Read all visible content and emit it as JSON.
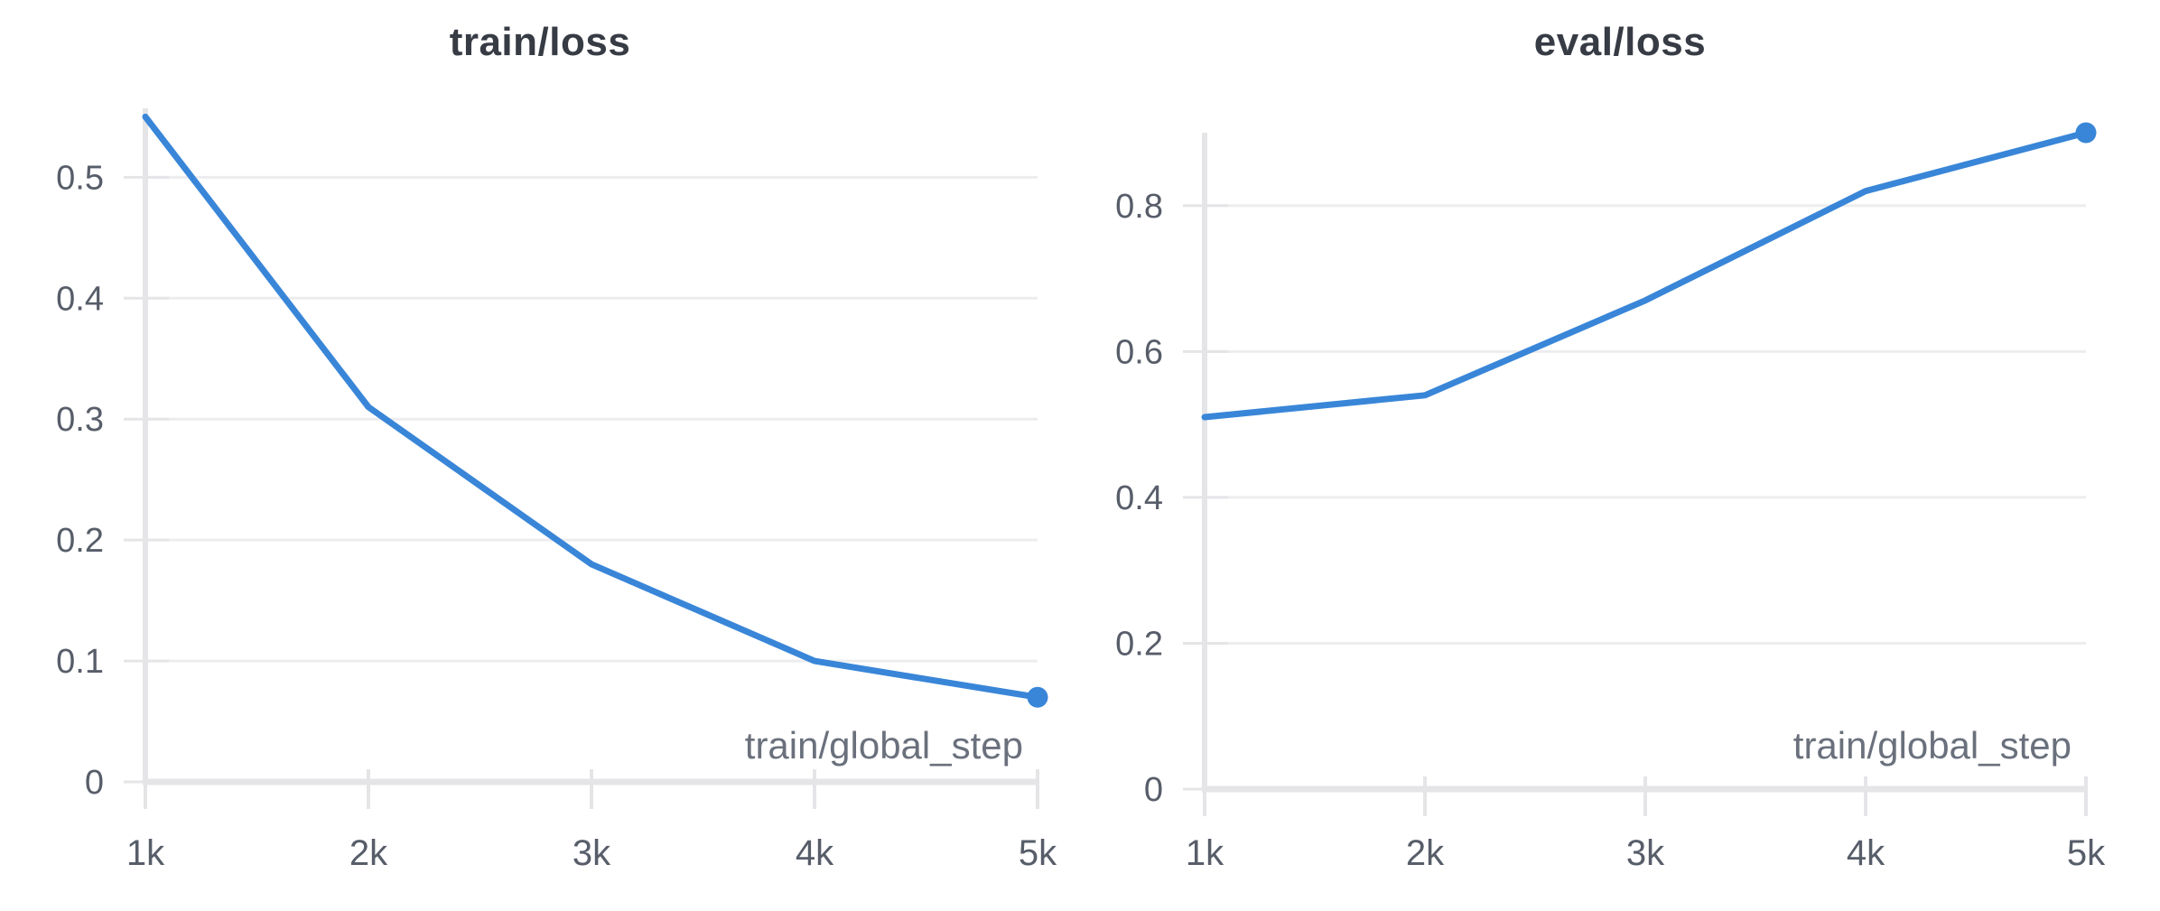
{
  "styles": {
    "background": "#ffffff",
    "title_color": "#363b44",
    "tick_label_color": "#575d69",
    "axis_caption_color": "#6a707c",
    "grid_color": "#ededef",
    "axis_color": "#e5e5e8",
    "line_color": "#3986d8"
  },
  "chart_data": [
    {
      "type": "line",
      "title": "train/loss",
      "xlabel": "train/global_step",
      "ylabel": "",
      "x": [
        1000,
        2000,
        3000,
        4000,
        5000
      ],
      "x_tick_labels": [
        "1k",
        "2k",
        "3k",
        "4k",
        "5k"
      ],
      "values": [
        0.55,
        0.31,
        0.18,
        0.1,
        0.07
      ],
      "y_ticks": [
        0,
        0.1,
        0.2,
        0.3,
        0.4,
        0.5
      ],
      "y_tick_labels": [
        "0",
        "0.1",
        "0.2",
        "0.3",
        "0.4",
        "0.5"
      ],
      "xlim": [
        1000,
        5000
      ],
      "ylim": [
        0,
        0.557
      ],
      "grid": "horizontal",
      "legend": "none",
      "line_color": "#3986d8",
      "endpoint_marker": true
    },
    {
      "type": "line",
      "title": "eval/loss",
      "xlabel": "train/global_step",
      "ylabel": "",
      "x": [
        1000,
        2000,
        3000,
        4000,
        5000
      ],
      "x_tick_labels": [
        "1k",
        "2k",
        "3k",
        "4k",
        "5k"
      ],
      "values": [
        0.51,
        0.54,
        0.67,
        0.82,
        0.9
      ],
      "y_ticks": [
        0,
        0.2,
        0.4,
        0.6,
        0.8
      ],
      "y_tick_labels": [
        "0",
        "0.2",
        "0.4",
        "0.6",
        "0.8"
      ],
      "xlim": [
        1000,
        5000
      ],
      "ylim": [
        0,
        0.9
      ],
      "grid": "horizontal",
      "legend": "none",
      "line_color": "#3986d8",
      "endpoint_marker": true
    }
  ]
}
